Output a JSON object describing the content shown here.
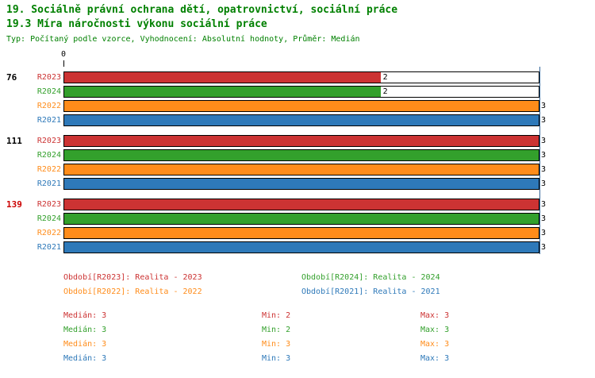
{
  "header": {
    "title_line1": "19. Sociálně právní ochrana dětí, opatrovnictví, sociální práce",
    "title_line2": "19.3 Míra náročnosti výkonu sociální práce",
    "meta_line": "Typ: Počítaný podle vzorce, Vyhodnocení: Absolutní hodnoty, Průměr: Medián",
    "title_color": "#008000"
  },
  "colors": {
    "r2023": "#cc3333",
    "r2024": "#33a02c",
    "r2022": "#ff8c1a",
    "r2021": "#2e79b9",
    "axis_line": "#336699",
    "value_label": "#000000"
  },
  "chart_data": {
    "type": "bar",
    "orientation": "horizontal",
    "x_axis": {
      "min": 0,
      "max": 3,
      "origin_label": "0"
    },
    "series_order": [
      "R2023",
      "R2024",
      "R2022",
      "R2021"
    ],
    "groups": [
      {
        "id": "76",
        "id_color": "#000000",
        "bars": [
          {
            "period": "R2023",
            "value": 2
          },
          {
            "period": "R2024",
            "value": 2
          },
          {
            "period": "R2022",
            "value": 3
          },
          {
            "period": "R2021",
            "value": 3
          }
        ]
      },
      {
        "id": "111",
        "id_color": "#000000",
        "bars": [
          {
            "period": "R2023",
            "value": 3
          },
          {
            "period": "R2024",
            "value": 3
          },
          {
            "period": "R2022",
            "value": 3
          },
          {
            "period": "R2021",
            "value": 3
          }
        ]
      },
      {
        "id": "139",
        "id_color": "#cc0000",
        "bars": [
          {
            "period": "R2023",
            "value": 3
          },
          {
            "period": "R2024",
            "value": 3
          },
          {
            "period": "R2022",
            "value": 3
          },
          {
            "period": "R2021",
            "value": 3
          }
        ]
      }
    ]
  },
  "legend": {
    "items": [
      {
        "label": "Období[R2023]: Realita - 2023",
        "series": "r2023"
      },
      {
        "label": "Období[R2024]: Realita - 2024",
        "series": "r2024"
      },
      {
        "label": "Období[R2022]: Realita - 2022",
        "series": "r2022"
      },
      {
        "label": "Období[R2021]: Realita - 2021",
        "series": "r2021"
      }
    ]
  },
  "stats": {
    "rows": [
      {
        "series": "r2023",
        "median": "Medián: 3",
        "min": "Min: 2",
        "max": "Max: 3"
      },
      {
        "series": "r2024",
        "median": "Medián: 3",
        "min": "Min: 2",
        "max": "Max: 3"
      },
      {
        "series": "r2022",
        "median": "Medián: 3",
        "min": "Min: 3",
        "max": "Max: 3"
      },
      {
        "series": "r2021",
        "median": "Medián: 3",
        "min": "Min: 3",
        "max": "Max: 3"
      }
    ]
  }
}
